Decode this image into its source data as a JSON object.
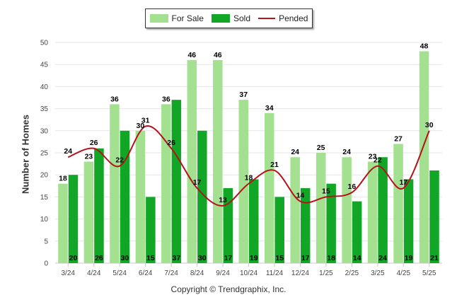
{
  "chart_data": {
    "type": "bar",
    "categories": [
      "3/24",
      "4/24",
      "5/24",
      "6/24",
      "7/24",
      "8/24",
      "9/24",
      "10/24",
      "11/24",
      "12/24",
      "1/25",
      "2/25",
      "3/25",
      "4/25",
      "5/25"
    ],
    "series": [
      {
        "name": "For Sale",
        "type": "bar",
        "color": "#a3e08f",
        "values": [
          18,
          23,
          36,
          30,
          36,
          46,
          46,
          37,
          34,
          24,
          25,
          24,
          23,
          27,
          48
        ]
      },
      {
        "name": "Sold",
        "type": "bar",
        "color": "#12a626",
        "values": [
          20,
          26,
          30,
          15,
          37,
          30,
          17,
          19,
          15,
          17,
          18,
          14,
          24,
          19,
          21
        ]
      },
      {
        "name": "Pended",
        "type": "line",
        "color": "#b5121b",
        "values": [
          24,
          26,
          22,
          31,
          26,
          17,
          13,
          18,
          21,
          14,
          15,
          16,
          22,
          17,
          30
        ]
      }
    ],
    "ylabel": "Number of Homes",
    "xlabel": "",
    "ylim": [
      0,
      50
    ],
    "yticks": [
      0,
      5,
      10,
      15,
      20,
      25,
      30,
      35,
      40,
      45,
      50
    ],
    "grid": true,
    "legend_position": "top-center"
  },
  "copyright": "Copyright © Trendgraphix, Inc."
}
